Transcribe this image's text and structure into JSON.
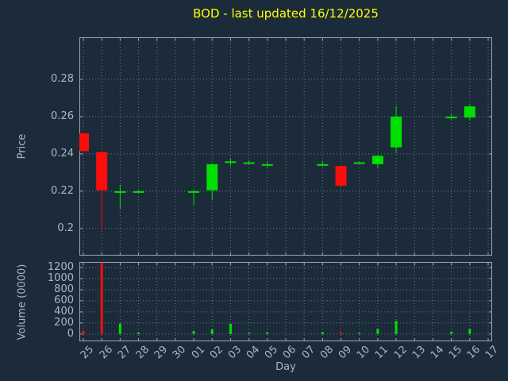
{
  "colors": {
    "bg": "#1c2b3a",
    "title": "#ffff00",
    "axis_text": "#a4b9cb",
    "grid": "#667b8e",
    "border": "#97a9ba",
    "up": "#00e000",
    "down": "#ff0d0d"
  },
  "chart_data": [
    {
      "type": "candlestick",
      "title": "BOD - last updated 16/12/2025",
      "xlabel": "Day",
      "ylabel": "Price",
      "grid": true,
      "legend": "none",
      "x_ticks": [
        "25",
        "26",
        "27",
        "28",
        "29",
        "30",
        "01",
        "02",
        "03",
        "04",
        "05",
        "06",
        "07",
        "08",
        "09",
        "10",
        "11",
        "12",
        "13",
        "14",
        "15",
        "16",
        "17"
      ],
      "y_ticks": [
        {
          "label": "0.28",
          "value": 0.28
        },
        {
          "label": "0.26",
          "value": 0.26
        },
        {
          "label": "0.24",
          "value": 0.24
        },
        {
          "label": "0.22",
          "value": 0.22
        },
        {
          "label": "0.2",
          "value": 0.2
        }
      ],
      "ylim": [
        0.1855,
        0.3025
      ],
      "candles": [
        {
          "day": "25",
          "open": 0.251,
          "high": 0.2515,
          "low": 0.241,
          "close": 0.2415
        },
        {
          "day": "26",
          "open": 0.241,
          "high": 0.241,
          "low": 0.1995,
          "close": 0.2205
        },
        {
          "day": "27",
          "open": 0.22,
          "high": 0.2235,
          "low": 0.2105,
          "close": 0.22
        },
        {
          "day": "28",
          "open": 0.22,
          "high": 0.2205,
          "low": 0.2195,
          "close": 0.22
        },
        {
          "day": "01",
          "open": 0.22,
          "high": 0.221,
          "low": 0.2125,
          "close": 0.22
        },
        {
          "day": "02",
          "open": 0.2205,
          "high": 0.235,
          "low": 0.2155,
          "close": 0.2345
        },
        {
          "day": "03",
          "open": 0.236,
          "high": 0.2375,
          "low": 0.2335,
          "close": 0.236
        },
        {
          "day": "04",
          "open": 0.2355,
          "high": 0.2365,
          "low": 0.2345,
          "close": 0.2355
        },
        {
          "day": "05",
          "open": 0.2345,
          "high": 0.236,
          "low": 0.2325,
          "close": 0.2345
        },
        {
          "day": "08",
          "open": 0.2345,
          "high": 0.236,
          "low": 0.2335,
          "close": 0.2345
        },
        {
          "day": "09",
          "open": 0.2335,
          "high": 0.2335,
          "low": 0.2225,
          "close": 0.223
        },
        {
          "day": "10",
          "open": 0.2355,
          "high": 0.236,
          "low": 0.235,
          "close": 0.2355
        },
        {
          "day": "11",
          "open": 0.2345,
          "high": 0.2395,
          "low": 0.2325,
          "close": 0.239
        },
        {
          "day": "12",
          "open": 0.2435,
          "high": 0.2655,
          "low": 0.2405,
          "close": 0.26
        },
        {
          "day": "15",
          "open": 0.26,
          "high": 0.2615,
          "low": 0.2585,
          "close": 0.26
        },
        {
          "day": "16",
          "open": 0.2595,
          "high": 0.266,
          "low": 0.258,
          "close": 0.2655
        }
      ]
    },
    {
      "type": "bar",
      "ylabel": "Volume (0000)",
      "grid": true,
      "y_ticks": [
        {
          "label": "1200",
          "value": 1200
        },
        {
          "label": "1000",
          "value": 1000
        },
        {
          "label": "800",
          "value": 800
        },
        {
          "label": "600",
          "value": 600
        },
        {
          "label": "400",
          "value": 400
        },
        {
          "label": "200",
          "value": 200
        },
        {
          "label": "0",
          "value": 0
        }
      ],
      "ylim": [
        -130,
        1300
      ],
      "bars": [
        {
          "day": "25",
          "value": 60,
          "direction": "down"
        },
        {
          "day": "26",
          "value": 1290,
          "direction": "down"
        },
        {
          "day": "27",
          "value": 190,
          "direction": "up"
        },
        {
          "day": "28",
          "value": 25,
          "direction": "up"
        },
        {
          "day": "01",
          "value": 55,
          "direction": "up"
        },
        {
          "day": "02",
          "value": 85,
          "direction": "up"
        },
        {
          "day": "03",
          "value": 185,
          "direction": "up"
        },
        {
          "day": "04",
          "value": 20,
          "direction": "up"
        },
        {
          "day": "05",
          "value": 30,
          "direction": "up"
        },
        {
          "day": "08",
          "value": 35,
          "direction": "up"
        },
        {
          "day": "09",
          "value": 40,
          "direction": "down"
        },
        {
          "day": "10",
          "value": 20,
          "direction": "up"
        },
        {
          "day": "11",
          "value": 95,
          "direction": "up"
        },
        {
          "day": "12",
          "value": 240,
          "direction": "up"
        },
        {
          "day": "15",
          "value": 45,
          "direction": "up"
        },
        {
          "day": "16",
          "value": 95,
          "direction": "up"
        }
      ]
    }
  ]
}
